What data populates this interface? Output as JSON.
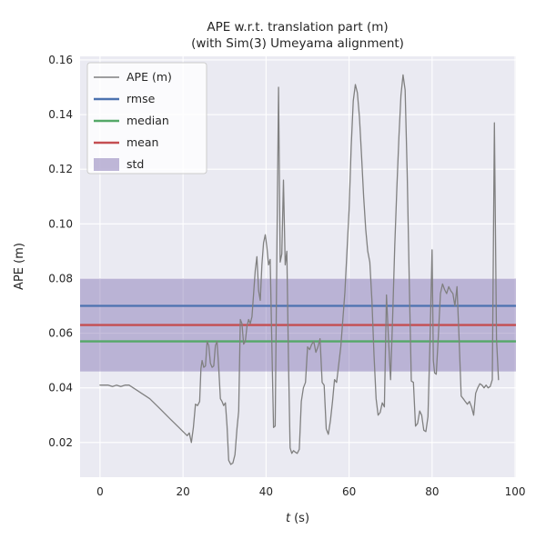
{
  "figure": {
    "title_line1": "APE w.r.t. translation part (m)",
    "title_line2": "(with Sim(3) Umeyama alignment)",
    "xlabel": "t (s)",
    "xlabel_var": "t",
    "xlabel_rest": "(s)",
    "ylabel": "APE (m)"
  },
  "legend": {
    "items": [
      {
        "label": "APE (m)"
      },
      {
        "label": "rmse"
      },
      {
        "label": "median"
      },
      {
        "label": "mean"
      },
      {
        "label": "std"
      }
    ]
  },
  "colors": {
    "ape": "#808080",
    "rmse": "#4C72B0",
    "median": "#55A868",
    "mean": "#C44E52",
    "std": "#8172B2",
    "plot_bg": "#EAEAF2",
    "grid": "#FFFFFF",
    "text": "#262626"
  },
  "chart_data": {
    "type": "line",
    "title": "APE w.r.t. translation part (m)\n(with Sim(3) Umeyama alignment)",
    "xlabel": "t (s)",
    "ylabel": "APE (m)",
    "xlim": [
      -4.8,
      100.2
    ],
    "ylim": [
      0.0073,
      0.1613
    ],
    "grid": true,
    "legend_position": "upper left",
    "x_ticks": {
      "values": [
        0,
        20,
        40,
        60,
        80,
        100
      ],
      "labels": [
        "0",
        "20",
        "40",
        "60",
        "80",
        "100"
      ]
    },
    "y_ticks": {
      "values": [
        0.02,
        0.04,
        0.06,
        0.08,
        0.1,
        0.12,
        0.14,
        0.16
      ],
      "labels": [
        "0.02",
        "0.04",
        "0.06",
        "0.08",
        "0.10",
        "0.12",
        "0.14",
        "0.16"
      ]
    },
    "stats": {
      "rmse": 0.07,
      "median": 0.057,
      "mean": 0.063,
      "std_band": [
        0.046,
        0.08
      ]
    },
    "series": [
      {
        "name": "APE (m)",
        "points": [
          [
            0,
            0.041
          ],
          [
            1,
            0.041
          ],
          [
            2,
            0.041
          ],
          [
            3,
            0.0405
          ],
          [
            4,
            0.041
          ],
          [
            5,
            0.0405
          ],
          [
            6,
            0.041
          ],
          [
            7,
            0.041
          ],
          [
            8,
            0.04
          ],
          [
            9,
            0.039
          ],
          [
            10,
            0.038
          ],
          [
            11,
            0.037
          ],
          [
            12,
            0.036
          ],
          [
            13,
            0.0345
          ],
          [
            14,
            0.033
          ],
          [
            15,
            0.0315
          ],
          [
            16,
            0.03
          ],
          [
            17,
            0.0285
          ],
          [
            18,
            0.027
          ],
          [
            19,
            0.0255
          ],
          [
            20,
            0.024
          ],
          [
            21,
            0.0225
          ],
          [
            21.5,
            0.0235
          ],
          [
            22,
            0.02
          ],
          [
            22.5,
            0.0255
          ],
          [
            23,
            0.034
          ],
          [
            23.5,
            0.0335
          ],
          [
            24,
            0.035
          ],
          [
            24.3,
            0.047
          ],
          [
            24.6,
            0.05
          ],
          [
            25,
            0.0475
          ],
          [
            25.4,
            0.048
          ],
          [
            25.8,
            0.057
          ],
          [
            26.2,
            0.0555
          ],
          [
            26.6,
            0.049
          ],
          [
            27,
            0.0475
          ],
          [
            27.4,
            0.048
          ],
          [
            27.8,
            0.0555
          ],
          [
            28.2,
            0.057
          ],
          [
            28.6,
            0.047
          ],
          [
            29,
            0.036
          ],
          [
            29.4,
            0.035
          ],
          [
            29.8,
            0.0335
          ],
          [
            30.2,
            0.0345
          ],
          [
            30.6,
            0.026
          ],
          [
            31,
            0.0135
          ],
          [
            31.5,
            0.012
          ],
          [
            32,
            0.0125
          ],
          [
            32.5,
            0.0155
          ],
          [
            33,
            0.025
          ],
          [
            33.4,
            0.0315
          ],
          [
            33.8,
            0.065
          ],
          [
            34.2,
            0.0635
          ],
          [
            34.6,
            0.056
          ],
          [
            35,
            0.057
          ],
          [
            35.4,
            0.0625
          ],
          [
            35.8,
            0.065
          ],
          [
            36.2,
            0.0635
          ],
          [
            36.6,
            0.066
          ],
          [
            37,
            0.0745
          ],
          [
            37.4,
            0.083
          ],
          [
            37.8,
            0.088
          ],
          [
            38.2,
            0.0755
          ],
          [
            38.6,
            0.072
          ],
          [
            39,
            0.085
          ],
          [
            39.4,
            0.093
          ],
          [
            39.8,
            0.096
          ],
          [
            40.2,
            0.0915
          ],
          [
            40.6,
            0.085
          ],
          [
            41,
            0.087
          ],
          [
            41.4,
            0.055
          ],
          [
            41.8,
            0.0255
          ],
          [
            42.2,
            0.026
          ],
          [
            42.6,
            0.088
          ],
          [
            43,
            0.15
          ],
          [
            43.4,
            0.086
          ],
          [
            43.8,
            0.089
          ],
          [
            44.2,
            0.116
          ],
          [
            44.6,
            0.085
          ],
          [
            45,
            0.09
          ],
          [
            45.4,
            0.05
          ],
          [
            45.8,
            0.018
          ],
          [
            46.2,
            0.016
          ],
          [
            46.6,
            0.017
          ],
          [
            47,
            0.0165
          ],
          [
            47.5,
            0.016
          ],
          [
            48,
            0.0175
          ],
          [
            48.5,
            0.035
          ],
          [
            49,
            0.04
          ],
          [
            49.5,
            0.042
          ],
          [
            50,
            0.055
          ],
          [
            50.5,
            0.054
          ],
          [
            51,
            0.056
          ],
          [
            51.5,
            0.057
          ],
          [
            52,
            0.053
          ],
          [
            52.5,
            0.055
          ],
          [
            53,
            0.058
          ],
          [
            53.5,
            0.042
          ],
          [
            54,
            0.041
          ],
          [
            54.5,
            0.025
          ],
          [
            55,
            0.023
          ],
          [
            55.5,
            0.028
          ],
          [
            56,
            0.035
          ],
          [
            56.5,
            0.043
          ],
          [
            57,
            0.042
          ],
          [
            58,
            0.055
          ],
          [
            59,
            0.075
          ],
          [
            60,
            0.105
          ],
          [
            60.5,
            0.128
          ],
          [
            61,
            0.145
          ],
          [
            61.5,
            0.151
          ],
          [
            62,
            0.148
          ],
          [
            62.5,
            0.139
          ],
          [
            63,
            0.125
          ],
          [
            63.5,
            0.11
          ],
          [
            64,
            0.098
          ],
          [
            64.5,
            0.09
          ],
          [
            65,
            0.086
          ],
          [
            65.5,
            0.072
          ],
          [
            66,
            0.052
          ],
          [
            66.5,
            0.036
          ],
          [
            67,
            0.03
          ],
          [
            67.5,
            0.031
          ],
          [
            68,
            0.0345
          ],
          [
            68.5,
            0.033
          ],
          [
            69,
            0.074
          ],
          [
            69.5,
            0.058
          ],
          [
            70,
            0.043
          ],
          [
            70.5,
            0.066
          ],
          [
            71,
            0.092
          ],
          [
            71.5,
            0.113
          ],
          [
            72,
            0.132
          ],
          [
            72.5,
            0.147
          ],
          [
            73,
            0.1545
          ],
          [
            73.5,
            0.149
          ],
          [
            74,
            0.118
          ],
          [
            74.5,
            0.078
          ],
          [
            75,
            0.0425
          ],
          [
            75.5,
            0.042
          ],
          [
            76,
            0.026
          ],
          [
            76.5,
            0.027
          ],
          [
            77,
            0.0315
          ],
          [
            77.5,
            0.03
          ],
          [
            78,
            0.0245
          ],
          [
            78.5,
            0.024
          ],
          [
            79,
            0.0295
          ],
          [
            79.5,
            0.058
          ],
          [
            80,
            0.0905
          ],
          [
            80.3,
            0.05
          ],
          [
            80.6,
            0.0455
          ],
          [
            81,
            0.045
          ],
          [
            81.5,
            0.059
          ],
          [
            82,
            0.0745
          ],
          [
            82.5,
            0.078
          ],
          [
            83,
            0.076
          ],
          [
            83.5,
            0.0745
          ],
          [
            84,
            0.077
          ],
          [
            84.5,
            0.0755
          ],
          [
            85,
            0.0745
          ],
          [
            85.5,
            0.07
          ],
          [
            86,
            0.077
          ],
          [
            86.5,
            0.058
          ],
          [
            87,
            0.037
          ],
          [
            87.5,
            0.036
          ],
          [
            88,
            0.035
          ],
          [
            88.5,
            0.034
          ],
          [
            89,
            0.035
          ],
          [
            89.5,
            0.033
          ],
          [
            90,
            0.03
          ],
          [
            90.5,
            0.038
          ],
          [
            91,
            0.04
          ],
          [
            91.5,
            0.0415
          ],
          [
            92,
            0.041
          ],
          [
            92.5,
            0.04
          ],
          [
            93,
            0.041
          ],
          [
            93.5,
            0.04
          ],
          [
            94,
            0.0405
          ],
          [
            94.5,
            0.043
          ],
          [
            95,
            0.137
          ],
          [
            95.5,
            0.058
          ],
          [
            96,
            0.043
          ]
        ]
      }
    ]
  }
}
